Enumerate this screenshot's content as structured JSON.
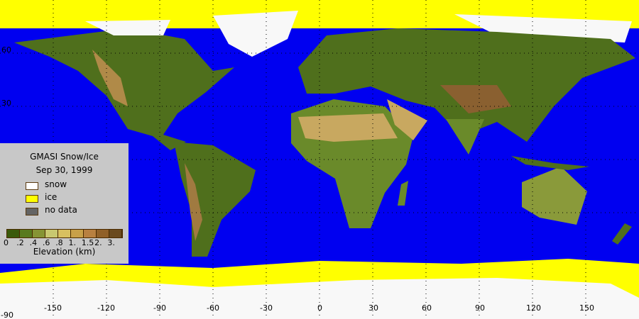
{
  "legend": {
    "title": "GMASI Snow/Ice",
    "date": "Sep 30, 1999",
    "items": [
      {
        "label": "snow",
        "color": "#ffffff"
      },
      {
        "label": "ice",
        "color": "#ffff00"
      },
      {
        "label": "no data",
        "color": "#646464"
      }
    ],
    "elevation_colors": [
      "#3a5a0a",
      "#587a1e",
      "#869434",
      "#c8c870",
      "#d8c060",
      "#c8a048",
      "#b88040",
      "#906028",
      "#6a4a1e"
    ],
    "elevation_ticks": [
      "0",
      ".2",
      ".4",
      ".6",
      ".8",
      "1.",
      "1.5",
      "2.",
      "3."
    ],
    "elevation_label": "Elevation (km)"
  },
  "axes": {
    "lon_ticks": [
      "-150",
      "-120",
      "-90",
      "-60",
      "-30",
      "0",
      "30",
      "60",
      "90",
      "120",
      "150"
    ],
    "lat_ticks": [
      "60",
      "30"
    ],
    "corner_label": "-90"
  },
  "colors": {
    "ocean": "#0000f0",
    "ice": "#ffff00",
    "snow": "#f8f8f8",
    "land": "#4a6a1a"
  }
}
